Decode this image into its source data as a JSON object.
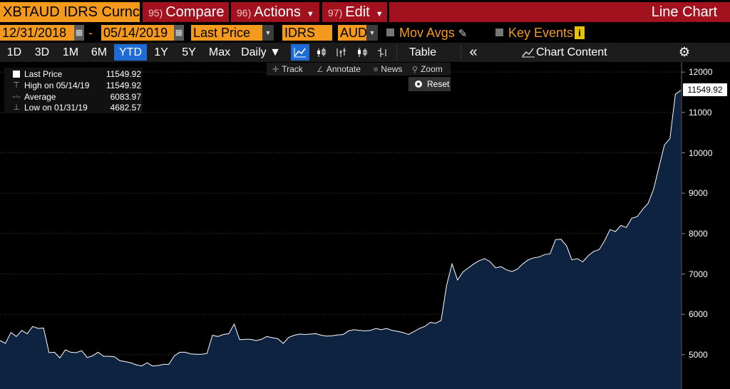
{
  "header": {
    "ticker": "XBTAUD IDRS Curnc",
    "compare": {
      "num": "95)",
      "label": "Compare"
    },
    "actions": {
      "num": "96)",
      "label": "Actions"
    },
    "edit": {
      "num": "97)",
      "label": "Edit"
    },
    "chart_type": "Line Chart"
  },
  "options": {
    "start_date": "12/31/2018",
    "dash": "-",
    "end_date": "05/14/2019",
    "field": "Last Price",
    "source": "IDRS",
    "currency": "AUD",
    "mov_avgs": "Mov Avgs",
    "key_events": "Key Events",
    "info_glyph": "i"
  },
  "toolbar": {
    "ranges": [
      "1D",
      "3D",
      "1M",
      "6M",
      "YTD",
      "1Y",
      "5Y",
      "Max"
    ],
    "active_range": "YTD",
    "frequency": "Daily ▼",
    "table": "Table",
    "collapse": "«",
    "chart_content": "Chart Content",
    "settings_icon": "gear-icon"
  },
  "tools": {
    "track": "Track",
    "annotate": "Annotate",
    "news": "News",
    "zoom": "Zoom",
    "reset": "Reset"
  },
  "legend": {
    "rows": [
      {
        "label": "Last Price",
        "value": "11549.92"
      },
      {
        "label": "High on 05/14/19",
        "value": "11549.92"
      },
      {
        "label": "Average",
        "value": "6083.97"
      },
      {
        "label": "Low on 01/31/19",
        "value": "4682.57"
      }
    ]
  },
  "last_price_label": "11549.92",
  "colors": {
    "accent_orange": "#f39a1e",
    "button_red": "#a2121e",
    "active_blue": "#1f6bd6",
    "area_fill": "#0d2340",
    "line": "#ffffff"
  },
  "chart_data": {
    "type": "area",
    "x_start": "12/31/2018",
    "x_end": "05/14/2019",
    "ylim": [
      4150,
      12250
    ],
    "yticks": [
      5000,
      6000,
      7000,
      8000,
      9000,
      10000,
      11000,
      12000
    ],
    "grid": true,
    "values": [
      5350,
      5280,
      5550,
      5450,
      5600,
      5520,
      5700,
      5650,
      5660,
      5050,
      5060,
      4920,
      5120,
      5060,
      5050,
      5100,
      4930,
      4970,
      5060,
      4960,
      4960,
      4950,
      4850,
      4830,
      4800,
      4750,
      4720,
      4800,
      4720,
      4730,
      4760,
      4760,
      4970,
      5060,
      5060,
      5020,
      5010,
      5010,
      5030,
      5480,
      5450,
      5500,
      5520,
      5760,
      5370,
      5380,
      5380,
      5350,
      5380,
      5450,
      5420,
      5400,
      5280,
      5430,
      5480,
      5510,
      5500,
      5510,
      5520,
      5480,
      5460,
      5470,
      5490,
      5500,
      5590,
      5620,
      5600,
      5590,
      5600,
      5650,
      5620,
      5650,
      5600,
      5580,
      5550,
      5500,
      5570,
      5650,
      5700,
      5800,
      5780,
      5850,
      6720,
      7250,
      6850,
      7050,
      7150,
      7250,
      7330,
      7380,
      7300,
      7150,
      7180,
      7100,
      7060,
      7120,
      7250,
      7350,
      7400,
      7420,
      7480,
      7500,
      7850,
      7860,
      7700,
      7350,
      7380,
      7300,
      7450,
      7560,
      7600,
      7820,
      8100,
      8050,
      8200,
      8150,
      8380,
      8420,
      8600,
      8750,
      9100,
      9650,
      10200,
      10350,
      11450,
      11549.92
    ]
  }
}
